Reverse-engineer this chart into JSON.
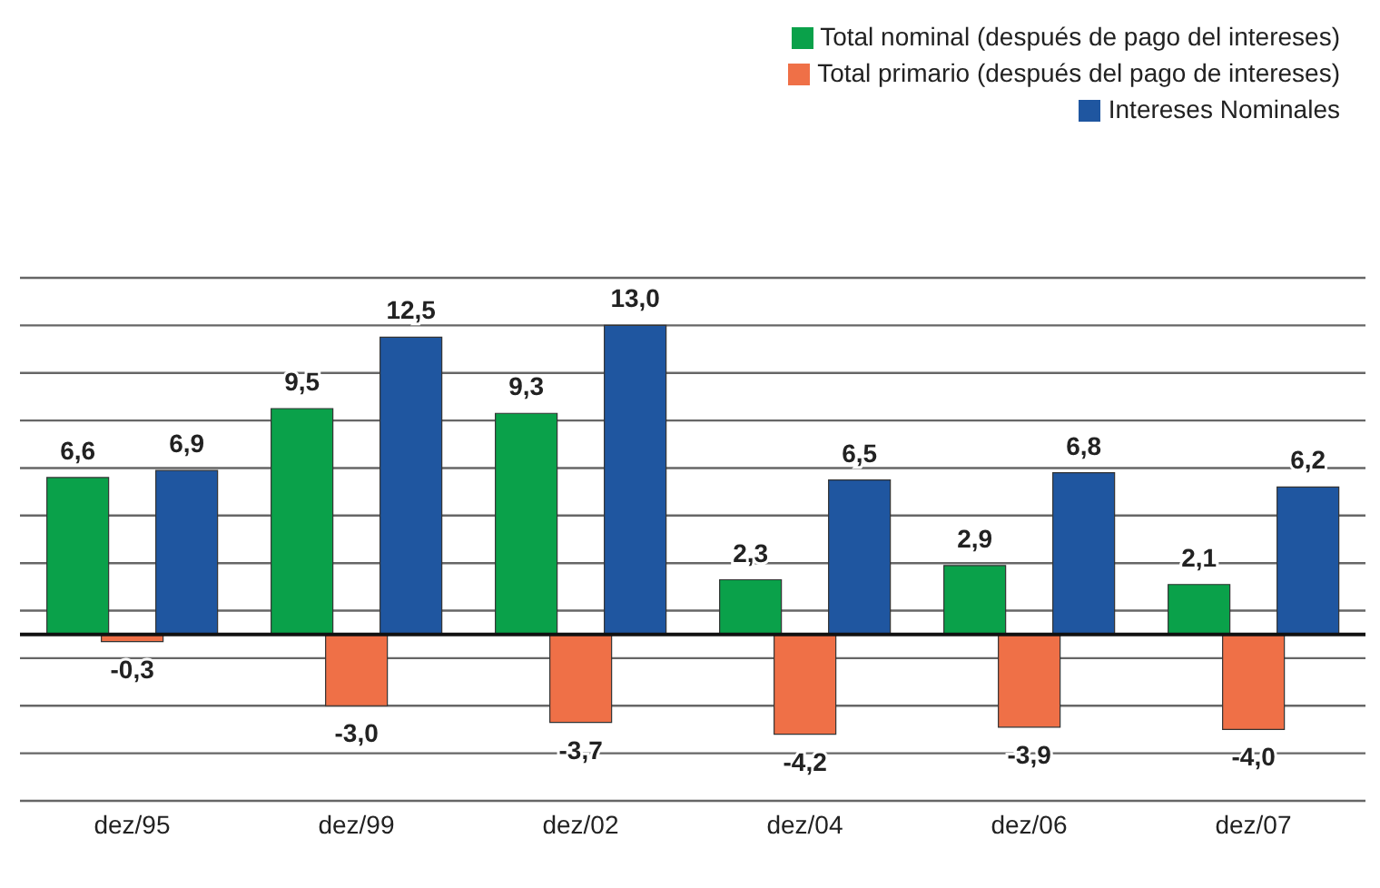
{
  "chart_data": {
    "type": "bar",
    "categories": [
      "dez/95",
      "dez/99",
      "dez/02",
      "dez/04",
      "dez/06",
      "dez/07"
    ],
    "series": [
      {
        "name": "Total nominal (después de pago del intereses)",
        "color": "#0aa14a",
        "values": [
          6.6,
          9.5,
          9.3,
          2.3,
          2.9,
          2.1
        ],
        "value_labels": [
          "6,6",
          "9,5",
          "9,3",
          "2,3",
          "2,9",
          "2,1"
        ]
      },
      {
        "name": "Total primario (después del pago de intereses)",
        "color": "#ef7047",
        "values": [
          -0.3,
          -3.0,
          -3.7,
          -4.2,
          -3.9,
          -4.0
        ],
        "value_labels": [
          "-0,3",
          "-3,0",
          "-3,7",
          "-4,2",
          "-3,9",
          "-4,0"
        ]
      },
      {
        "name": "Intereses Nominales",
        "color": "#1f56a0",
        "values": [
          6.9,
          12.5,
          13.0,
          6.5,
          6.8,
          6.2
        ],
        "value_labels": [
          "6,9",
          "12,5",
          "13,0",
          "6,5",
          "6,8",
          "6,2"
        ]
      }
    ],
    "ylim": [
      -7,
      15
    ],
    "yticks": [
      {
        "value": -7,
        "label": null
      },
      {
        "value": -5,
        "label": null
      },
      {
        "value": -3,
        "label": null
      },
      {
        "value": -1,
        "label": null
      },
      {
        "value": 1,
        "label": null
      },
      {
        "value": 3,
        "label": null
      },
      {
        "value": 5,
        "label": null
      },
      {
        "value": 7,
        "label": null
      },
      {
        "value": 9,
        "label": null
      },
      {
        "value": 11,
        "label": null
      },
      {
        "value": 13,
        "label": null
      },
      {
        "value": 15,
        "label": null
      }
    ],
    "tick_labels": "x",
    "grid": "y",
    "legend": "top right"
  }
}
